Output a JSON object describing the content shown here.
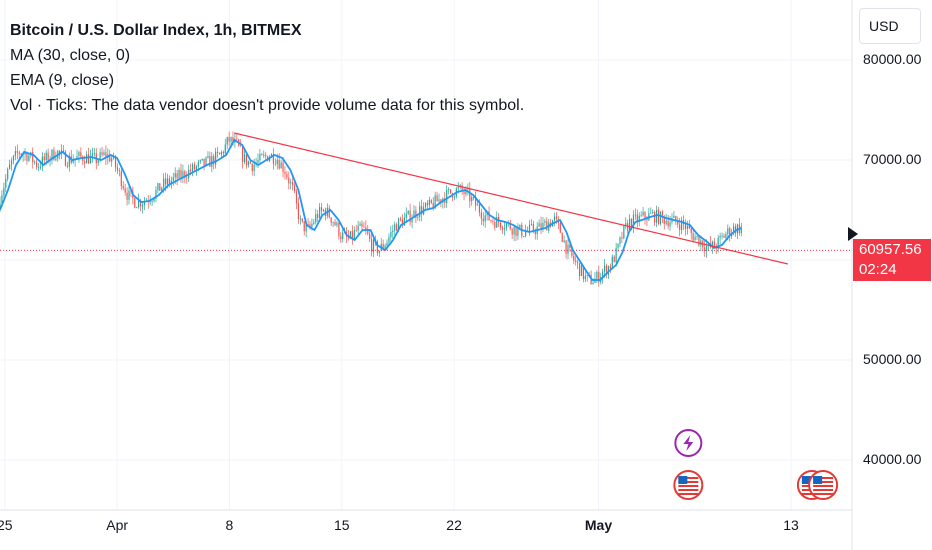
{
  "header": {
    "title": "Bitcoin / U.S. Dollar Index, 1h, BITMEX",
    "indicators": [
      "MA (30, close, 0)",
      "EMA (9, close)",
      "Vol · Ticks: The data vendor doesn't provide volume data for this symbol."
    ]
  },
  "currency_button": "USD",
  "colors": {
    "ema_line": "#2196f3",
    "trend_line": "#f23645",
    "up_candle": "#26a69a",
    "down_candle": "#ef5350",
    "price_tag": "#f23645",
    "event_purple": "#9c27b0",
    "event_red": "#e53935"
  },
  "chart_data": {
    "type": "line",
    "title": "Bitcoin / U.S. Dollar Index, 1h, BITMEX",
    "x_ticks": [
      {
        "label": "25",
        "day": 0
      },
      {
        "label": "Apr",
        "day": 7
      },
      {
        "label": "8",
        "day": 14
      },
      {
        "label": "15",
        "day": 21
      },
      {
        "label": "22",
        "day": 28
      },
      {
        "label": "May",
        "day": 37,
        "bold": true
      },
      {
        "label": "13",
        "day": 49
      }
    ],
    "y_ticks": [
      80000,
      70000,
      50000,
      40000
    ],
    "y_tick_labels": [
      "80000.00",
      "70000.00",
      "50000.00",
      "40000.00"
    ],
    "ylim": [
      35000,
      86000
    ],
    "xlim": [
      -0.3,
      52.8
    ],
    "grid": true,
    "current_price": {
      "value": 60957.56,
      "label": "60957.56",
      "countdown": "02:24"
    },
    "series": [
      {
        "kind": "ema",
        "points": [
          [
            -0.3,
            65000
          ],
          [
            0.2,
            67000
          ],
          [
            0.7,
            69500
          ],
          [
            1.2,
            70800
          ],
          [
            1.8,
            70500
          ],
          [
            2.4,
            69500
          ],
          [
            3,
            70200
          ],
          [
            3.6,
            70800
          ],
          [
            4.2,
            70000
          ],
          [
            4.8,
            70200
          ],
          [
            5.4,
            70300
          ],
          [
            6,
            70000
          ],
          [
            6.6,
            70500
          ],
          [
            7,
            70200
          ],
          [
            7.5,
            68500
          ],
          [
            8,
            66500
          ],
          [
            8.5,
            65800
          ],
          [
            9,
            65900
          ],
          [
            9.6,
            66500
          ],
          [
            10.2,
            67500
          ],
          [
            10.8,
            68000
          ],
          [
            11.4,
            68500
          ],
          [
            12,
            69000
          ],
          [
            12.6,
            69500
          ],
          [
            13.2,
            69900
          ],
          [
            13.8,
            70500
          ],
          [
            14.3,
            72000
          ],
          [
            14.8,
            71500
          ],
          [
            15.3,
            70000
          ],
          [
            15.8,
            69500
          ],
          [
            16.3,
            70000
          ],
          [
            16.8,
            70500
          ],
          [
            17.3,
            70200
          ],
          [
            17.8,
            69000
          ],
          [
            18.3,
            67000
          ],
          [
            18.8,
            63500
          ],
          [
            19.3,
            63000
          ],
          [
            19.8,
            64500
          ],
          [
            20.3,
            65000
          ],
          [
            20.8,
            64000
          ],
          [
            21.3,
            62500
          ],
          [
            21.8,
            62000
          ],
          [
            22.3,
            63000
          ],
          [
            22.8,
            63000
          ],
          [
            23.2,
            61500
          ],
          [
            23.7,
            61000
          ],
          [
            24.2,
            62000
          ],
          [
            24.7,
            63500
          ],
          [
            25.2,
            64000
          ],
          [
            25.7,
            64500
          ],
          [
            26.2,
            65000
          ],
          [
            26.7,
            65200
          ],
          [
            27.2,
            65800
          ],
          [
            27.7,
            66300
          ],
          [
            28.2,
            66800
          ],
          [
            28.7,
            67000
          ],
          [
            29.2,
            66500
          ],
          [
            29.7,
            65500
          ],
          [
            30.2,
            64500
          ],
          [
            30.7,
            64000
          ],
          [
            31.2,
            63800
          ],
          [
            31.7,
            63500
          ],
          [
            32.2,
            63000
          ],
          [
            32.7,
            62800
          ],
          [
            33.2,
            63000
          ],
          [
            33.7,
            63200
          ],
          [
            34.2,
            63700
          ],
          [
            34.6,
            64000
          ],
          [
            35,
            62800
          ],
          [
            35.4,
            61000
          ],
          [
            35.8,
            60000
          ],
          [
            36.2,
            59000
          ],
          [
            36.6,
            58000
          ],
          [
            37.1,
            58000
          ],
          [
            37.6,
            58800
          ],
          [
            38.1,
            59500
          ],
          [
            38.5,
            60800
          ],
          [
            38.9,
            62800
          ],
          [
            39.3,
            63800
          ],
          [
            39.7,
            64000
          ],
          [
            40.2,
            64300
          ],
          [
            40.7,
            64500
          ],
          [
            41.2,
            64200
          ],
          [
            41.7,
            64000
          ],
          [
            42.2,
            63800
          ],
          [
            42.7,
            63500
          ],
          [
            43.2,
            62500
          ],
          [
            43.7,
            61900
          ],
          [
            44.2,
            61200
          ],
          [
            44.7,
            61500
          ],
          [
            45.2,
            62500
          ],
          [
            45.6,
            63000
          ],
          [
            45.9,
            63200
          ]
        ]
      },
      {
        "kind": "trendline",
        "points": [
          [
            14.3,
            72700
          ],
          [
            48.8,
            59600
          ]
        ]
      }
    ]
  },
  "event_markers": [
    {
      "icon": "lightning-icon",
      "day": 42.6,
      "row": "upper"
    },
    {
      "icon": "us-flag-icon",
      "day": 42.6,
      "row": "lower"
    },
    {
      "icon": "us-flag-icon",
      "day": 50.3,
      "row": "lower"
    },
    {
      "icon": "us-flag-icon",
      "day": 51.0,
      "row": "lower"
    }
  ]
}
